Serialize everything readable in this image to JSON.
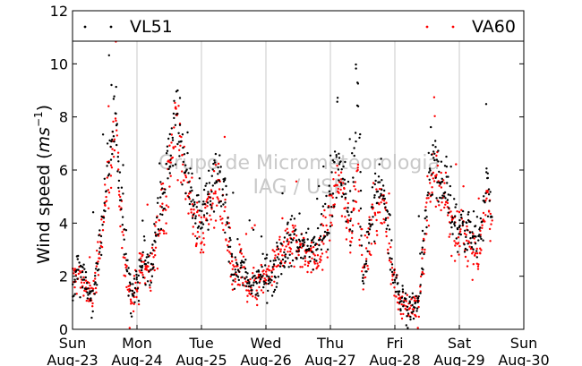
{
  "chart_data": {
    "type": "scatter",
    "title": "",
    "xlabel": "",
    "ylabel": "Wind speed (ms⁻¹)",
    "ylabel_main": "Wind speed (",
    "ylabel_unit": "ms",
    "ylabel_exp": "−1",
    "ylabel_close": ")",
    "ylim": [
      0,
      12
    ],
    "yticks": [
      0,
      2,
      4,
      6,
      8,
      10,
      12
    ],
    "xlim": [
      "2015-08-23",
      "2015-08-30"
    ],
    "xticks": [
      {
        "day": "Sun",
        "date": "Aug-23"
      },
      {
        "day": "Mon",
        "date": "Aug-24"
      },
      {
        "day": "Tue",
        "date": "Aug-25"
      },
      {
        "day": "Wed",
        "date": "Aug-26"
      },
      {
        "day": "Thu",
        "date": "Aug-27"
      },
      {
        "day": "Fri",
        "date": "Aug-28"
      },
      {
        "day": "Sat",
        "date": "Aug-29"
      },
      {
        "day": "Sun",
        "date": "Aug-30"
      }
    ],
    "grid": "vertical",
    "legend": "top",
    "watermark": [
      "Grupo de Micrometeorologia",
      "IAG / USP"
    ],
    "series": [
      {
        "name": "VL51",
        "color": "#000000",
        "keypoints": [
          [
            "2015-08-23 00:00",
            1.8
          ],
          [
            "2015-08-23 03:00",
            2.2
          ],
          [
            "2015-08-23 07:00",
            1.0
          ],
          [
            "2015-08-23 10:00",
            3.0
          ],
          [
            "2015-08-23 13:00",
            6.0
          ],
          [
            "2015-08-23 16:00",
            8.2
          ],
          [
            "2015-08-23 19:00",
            3.5
          ],
          [
            "2015-08-23 22:00",
            1.0
          ],
          [
            "2015-08-24 02:00",
            3.0
          ],
          [
            "2015-08-24 05:00",
            2.0
          ],
          [
            "2015-08-24 08:00",
            4.5
          ],
          [
            "2015-08-24 11:00",
            5.8
          ],
          [
            "2015-08-24 14:00",
            7.8
          ],
          [
            "2015-08-24 17:00",
            7.0
          ],
          [
            "2015-08-24 21:00",
            4.5
          ],
          [
            "2015-08-25 00:00",
            4.0
          ],
          [
            "2015-08-25 03:00",
            5.0
          ],
          [
            "2015-08-25 06:00",
            5.8
          ],
          [
            "2015-08-25 09:00",
            4.5
          ],
          [
            "2015-08-25 12:00",
            2.2
          ],
          [
            "2015-08-25 15:00",
            2.5
          ],
          [
            "2015-08-25 18:00",
            1.5
          ],
          [
            "2015-08-25 22:00",
            2.0
          ],
          [
            "2015-08-26 02:00",
            2.0
          ],
          [
            "2015-08-26 06:00",
            3.0
          ],
          [
            "2015-08-26 10:00",
            3.5
          ],
          [
            "2015-08-26 14:00",
            3.0
          ],
          [
            "2015-08-26 18:00",
            3.0
          ],
          [
            "2015-08-26 22:00",
            4.0
          ],
          [
            "2015-08-27 02:00",
            6.2
          ],
          [
            "2015-08-27 05:00",
            5.5
          ],
          [
            "2015-08-27 08:00",
            4.0
          ],
          [
            "2015-08-27 10:00",
            10.0
          ],
          [
            "2015-08-27 12:00",
            2.0
          ],
          [
            "2015-08-27 15:00",
            4.0
          ],
          [
            "2015-08-27 18:00",
            5.5
          ],
          [
            "2015-08-27 21:00",
            4.5
          ],
          [
            "2015-08-27 23:00",
            2.5
          ],
          [
            "2015-08-28 02:00",
            1.2
          ],
          [
            "2015-08-28 06:00",
            0.8
          ],
          [
            "2015-08-28 09:00",
            1.0
          ],
          [
            "2015-08-28 13:00",
            6.0
          ],
          [
            "2015-08-28 16:00",
            6.0
          ],
          [
            "2015-08-28 19:00",
            5.5
          ],
          [
            "2015-08-28 22:00",
            4.0
          ],
          [
            "2015-08-29 02:00",
            3.8
          ],
          [
            "2015-08-29 05:00",
            3.5
          ],
          [
            "2015-08-29 07:00",
            3.2
          ],
          [
            "2015-08-29 10:00",
            5.8
          ],
          [
            "2015-08-29 12:00",
            4.2
          ]
        ]
      },
      {
        "name": "VA60",
        "color": "#ff0000",
        "keypoints": [
          [
            "2015-08-23 00:00",
            1.9
          ],
          [
            "2015-08-23 03:00",
            2.0
          ],
          [
            "2015-08-23 07:00",
            1.0
          ],
          [
            "2015-08-23 10:00",
            3.0
          ],
          [
            "2015-08-23 13:00",
            5.5
          ],
          [
            "2015-08-23 16:00",
            7.0
          ],
          [
            "2015-08-23 19:00",
            3.0
          ],
          [
            "2015-08-23 22:00",
            1.0
          ],
          [
            "2015-08-24 02:00",
            2.5
          ],
          [
            "2015-08-24 05:00",
            2.0
          ],
          [
            "2015-08-24 08:00",
            4.0
          ],
          [
            "2015-08-24 11:00",
            5.0
          ],
          [
            "2015-08-24 14:00",
            7.5
          ],
          [
            "2015-08-24 17:00",
            6.5
          ],
          [
            "2015-08-24 21:00",
            4.0
          ],
          [
            "2015-08-25 00:00",
            3.5
          ],
          [
            "2015-08-25 03:00",
            4.5
          ],
          [
            "2015-08-25 06:00",
            5.5
          ],
          [
            "2015-08-25 09:00",
            4.0
          ],
          [
            "2015-08-25 12:00",
            2.0
          ],
          [
            "2015-08-25 15:00",
            2.2
          ],
          [
            "2015-08-25 18:00",
            1.3
          ],
          [
            "2015-08-25 22:00",
            1.8
          ],
          [
            "2015-08-26 02:00",
            2.0
          ],
          [
            "2015-08-26 06:00",
            3.0
          ],
          [
            "2015-08-26 10:00",
            3.3
          ],
          [
            "2015-08-26 14:00",
            3.0
          ],
          [
            "2015-08-26 18:00",
            2.5
          ],
          [
            "2015-08-26 22:00",
            3.5
          ],
          [
            "2015-08-27 02:00",
            5.5
          ],
          [
            "2015-08-27 05:00",
            5.0
          ],
          [
            "2015-08-27 08:00",
            3.5
          ],
          [
            "2015-08-27 10:00",
            6.5
          ],
          [
            "2015-08-27 12:00",
            2.0
          ],
          [
            "2015-08-27 15:00",
            3.5
          ],
          [
            "2015-08-27 18:00",
            5.0
          ],
          [
            "2015-08-27 21:00",
            4.0
          ],
          [
            "2015-08-27 23:00",
            2.2
          ],
          [
            "2015-08-28 02:00",
            1.0
          ],
          [
            "2015-08-28 06:00",
            0.8
          ],
          [
            "2015-08-28 09:00",
            1.0
          ],
          [
            "2015-08-28 13:00",
            5.5
          ],
          [
            "2015-08-28 16:00",
            5.5
          ],
          [
            "2015-08-28 19:00",
            5.0
          ],
          [
            "2015-08-28 22:00",
            3.5
          ],
          [
            "2015-08-29 02:00",
            3.5
          ],
          [
            "2015-08-29 05:00",
            3.0
          ],
          [
            "2015-08-29 07:00",
            2.8
          ],
          [
            "2015-08-29 10:00",
            5.0
          ],
          [
            "2015-08-29 12:00",
            3.8
          ]
        ]
      }
    ]
  }
}
